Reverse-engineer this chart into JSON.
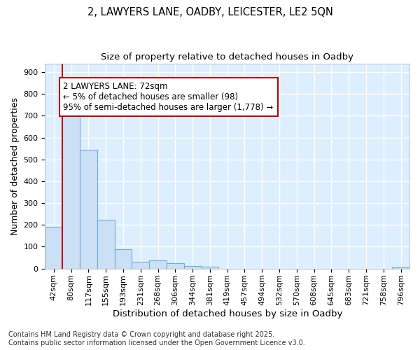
{
  "title_line1": "2, LAWYERS LANE, OADBY, LEICESTER, LE2 5QN",
  "title_line2": "Size of property relative to detached houses in Oadby",
  "xlabel": "Distribution of detached houses by size in Oadby",
  "ylabel": "Number of detached properties",
  "bar_color": "#cce0f5",
  "bar_edge_color": "#6aaed6",
  "background_color": "#ddeeff",
  "grid_color": "white",
  "categories": [
    "42sqm",
    "80sqm",
    "117sqm",
    "155sqm",
    "193sqm",
    "231sqm",
    "268sqm",
    "306sqm",
    "344sqm",
    "381sqm",
    "419sqm",
    "457sqm",
    "494sqm",
    "532sqm",
    "570sqm",
    "608sqm",
    "645sqm",
    "683sqm",
    "721sqm",
    "758sqm",
    "796sqm"
  ],
  "values": [
    190,
    715,
    545,
    222,
    90,
    30,
    38,
    25,
    12,
    8,
    0,
    0,
    0,
    0,
    0,
    0,
    0,
    0,
    0,
    0,
    6
  ],
  "ylim": [
    0,
    940
  ],
  "yticks": [
    0,
    100,
    200,
    300,
    400,
    500,
    600,
    700,
    800,
    900
  ],
  "annotation_text": "2 LAWYERS LANE: 72sqm\n← 5% of detached houses are smaller (98)\n95% of semi-detached houses are larger (1,778) →",
  "annotation_box_color": "#c00000",
  "vline_color": "#c00000",
  "footnote": "Contains HM Land Registry data © Crown copyright and database right 2025.\nContains public sector information licensed under the Open Government Licence v3.0.",
  "title_fontsize": 10.5,
  "subtitle_fontsize": 9.5,
  "axis_label_fontsize": 9,
  "tick_fontsize": 8,
  "annotation_fontsize": 8.5,
  "footnote_fontsize": 7
}
